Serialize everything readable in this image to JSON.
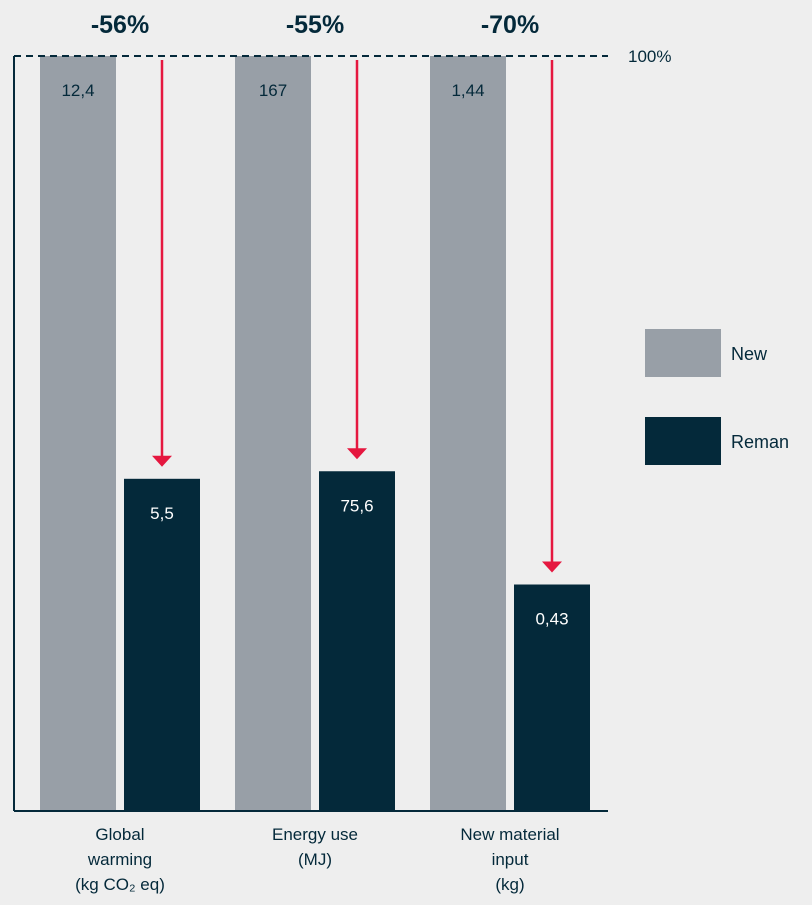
{
  "chart_data": {
    "type": "bar",
    "categories": [
      {
        "lines": [
          "Global",
          "warming",
          "(kg CO₂ eq)"
        ]
      },
      {
        "lines": [
          "Energy use",
          "(MJ)"
        ]
      },
      {
        "lines": [
          "New material",
          "input",
          "(kg)"
        ]
      }
    ],
    "series": [
      {
        "name": "New",
        "color": "#989fa7",
        "relative_values": [
          1.0,
          1.0,
          1.0
        ],
        "labels": [
          "12,4",
          "167",
          "1,44"
        ]
      },
      {
        "name": "Reman",
        "color": "#04293a",
        "relative_values": [
          0.44,
          0.45,
          0.3
        ],
        "labels": [
          "5,5",
          "75,6",
          "0,43"
        ]
      }
    ],
    "reductions": [
      "-56%",
      "-55%",
      "-70%"
    ],
    "reference_line": {
      "label": "100%",
      "value": 1.0
    },
    "arrow_color": "#e5173f",
    "legend_position": "right",
    "ylim": [
      0,
      1
    ]
  }
}
